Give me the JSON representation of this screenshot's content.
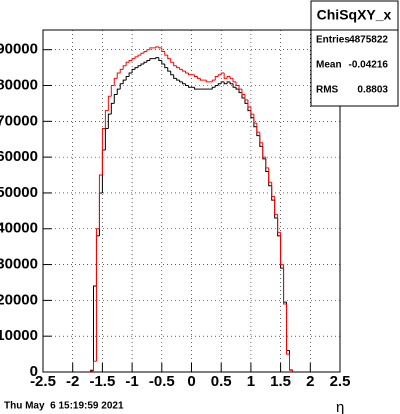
{
  "chart_data": {
    "type": "histogram",
    "x_label": "η",
    "bins": [
      -2.5,
      -2.45,
      -2.4,
      -2.35,
      -2.3,
      -2.25,
      -2.2,
      -2.15,
      -2.1,
      -2.05,
      -2,
      -1.95,
      -1.9,
      -1.85,
      -1.8,
      -1.75,
      -1.7,
      -1.65,
      -1.6,
      -1.55,
      -1.5,
      -1.45,
      -1.4,
      -1.35,
      -1.3,
      -1.25,
      -1.2,
      -1.15,
      -1.1,
      -1.05,
      -1,
      -0.95,
      -0.9,
      -0.85,
      -0.8,
      -0.75,
      -0.7,
      -0.65,
      -0.6,
      -0.55,
      -0.5,
      -0.45,
      -0.4,
      -0.35,
      -0.3,
      -0.25,
      -0.2,
      -0.15,
      -0.1,
      -0.05,
      0,
      0.05,
      0.1,
      0.15,
      0.2,
      0.25,
      0.3,
      0.35,
      0.4,
      0.45,
      0.5,
      0.55,
      0.6,
      0.65,
      0.7,
      0.75,
      0.8,
      0.85,
      0.9,
      0.95,
      1,
      1.05,
      1.1,
      1.15,
      1.2,
      1.25,
      1.3,
      1.35,
      1.4,
      1.45,
      1.5,
      1.55,
      1.6,
      1.65,
      1.7,
      1.75,
      1.8,
      1.85,
      1.9,
      1.95,
      2,
      2.05,
      2.1,
      2.15,
      2.2,
      2.25,
      2.3,
      2.35,
      2.4,
      2.45,
      2.5
    ],
    "series": [
      {
        "color": "#000000",
        "values": [
          0,
          0,
          0,
          0,
          0,
          0,
          0,
          0,
          0,
          0,
          0,
          0,
          0,
          0,
          0,
          0,
          500,
          24000,
          38000,
          50000,
          62000,
          68000,
          72000,
          75000,
          77500,
          79000,
          80500,
          81500,
          82500,
          83500,
          84500,
          85000,
          85500,
          86000,
          86500,
          87000,
          87500,
          87500,
          87800,
          87000,
          86000,
          85000,
          84000,
          83000,
          82000,
          81500,
          81000,
          80500,
          80000,
          79500,
          79500,
          79000,
          79000,
          79000,
          79000,
          79000,
          79000,
          79500,
          80000,
          80500,
          81000,
          80500,
          81000,
          80500,
          79500,
          79000,
          78000,
          76500,
          75000,
          73000,
          71000,
          68500,
          66000,
          63000,
          59500,
          56000,
          52000,
          48000,
          43000,
          38000,
          29000,
          19500,
          6000,
          600,
          0,
          0,
          0,
          0,
          0,
          0,
          0,
          0,
          0,
          0,
          0,
          0,
          0,
          0,
          0,
          0
        ]
      },
      {
        "color": "#ff0000",
        "values": [
          0,
          0,
          0,
          0,
          0,
          0,
          0,
          0,
          0,
          0,
          0,
          0,
          0,
          0,
          0,
          0,
          300,
          3000,
          40000,
          55000,
          68000,
          73000,
          77000,
          80000,
          82000,
          83500,
          84500,
          85500,
          86500,
          87000,
          87500,
          88000,
          88500,
          89000,
          89500,
          90000,
          90500,
          90500,
          90800,
          90500,
          89500,
          88500,
          87500,
          86500,
          85500,
          85000,
          84500,
          84000,
          83500,
          83000,
          83000,
          82500,
          82000,
          81500,
          81500,
          81000,
          81000,
          81500,
          82500,
          83000,
          83500,
          82000,
          82500,
          82000,
          81000,
          80000,
          79000,
          77500,
          76000,
          74000,
          72000,
          69500,
          67000,
          64000,
          60000,
          57000,
          53000,
          49000,
          44000,
          39000,
          30000,
          19000,
          5000,
          500,
          0,
          0,
          0,
          0,
          0,
          0,
          0,
          0,
          0,
          0,
          0,
          0,
          0,
          0,
          0,
          0
        ]
      }
    ],
    "xlim": [
      -2.5,
      2.5
    ],
    "xticks": [
      -2.5,
      -2,
      -1.5,
      -1,
      -0.5,
      0,
      0.5,
      1,
      1.5,
      2,
      2.5
    ],
    "ylim": [
      0,
      95500
    ],
    "yticks": [
      0,
      10000,
      20000,
      30000,
      40000,
      50000,
      60000,
      70000,
      80000,
      90000
    ],
    "grid": true,
    "stats": {
      "title": "ChiSqXY_x",
      "rows": [
        {
          "label": "Entries",
          "value": "4875822"
        },
        {
          "label": "Mean",
          "value": "-0.04216"
        },
        {
          "label": "RMS",
          "value": "0.8803"
        }
      ]
    },
    "timestamp": "Thu May  6 15:19:59 2021"
  }
}
